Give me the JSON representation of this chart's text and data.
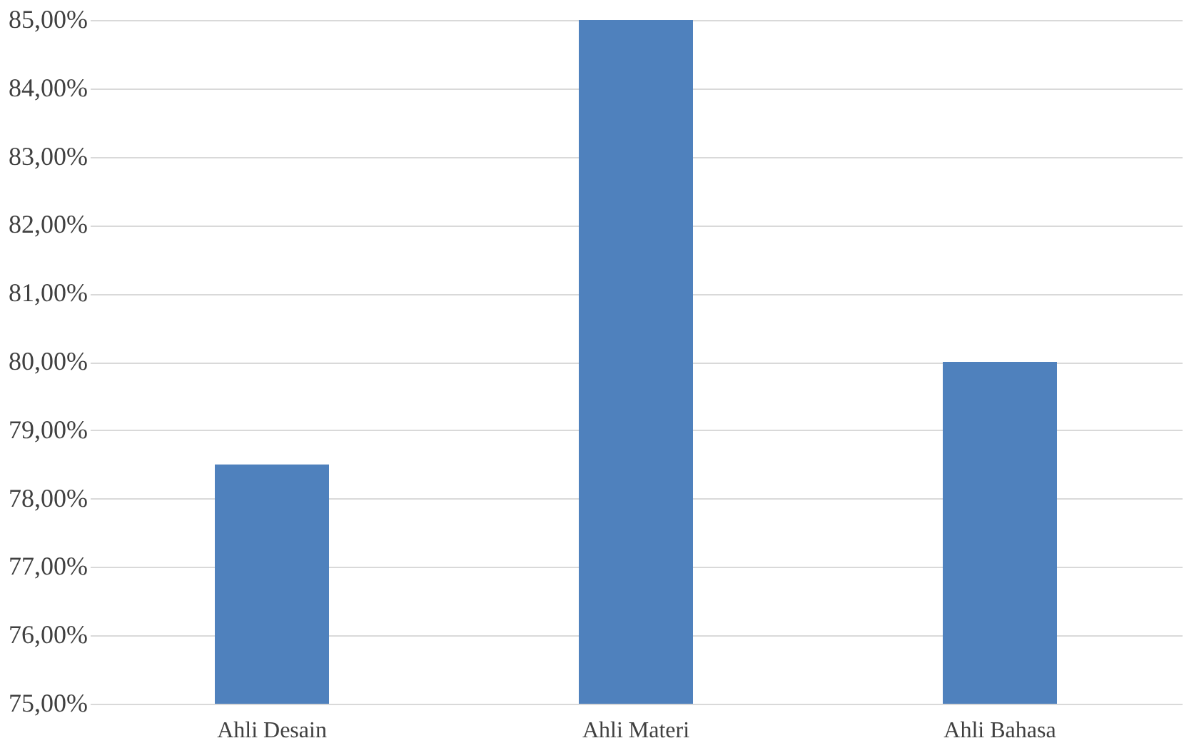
{
  "chart_data": {
    "type": "bar",
    "categories": [
      "Ahli Desain",
      "Ahli Materi",
      "Ahli Bahasa"
    ],
    "values": [
      78.5,
      85,
      80
    ],
    "color": "#4f81bd",
    "ylim": [
      75,
      85
    ],
    "yticks": [
      {
        "value": 75,
        "label": "75,00%"
      },
      {
        "value": 76,
        "label": "76,00%"
      },
      {
        "value": 77,
        "label": "77,00%"
      },
      {
        "value": 78,
        "label": "78,00%"
      },
      {
        "value": 79,
        "label": "79,00%"
      },
      {
        "value": 80,
        "label": "80,00%"
      },
      {
        "value": 81,
        "label": "81,00%"
      },
      {
        "value": 82,
        "label": "82,00%"
      },
      {
        "value": 83,
        "label": "83,00%"
      },
      {
        "value": 84,
        "label": "84,00%"
      },
      {
        "value": 85,
        "label": "85,00%"
      }
    ],
    "grid": "y"
  }
}
